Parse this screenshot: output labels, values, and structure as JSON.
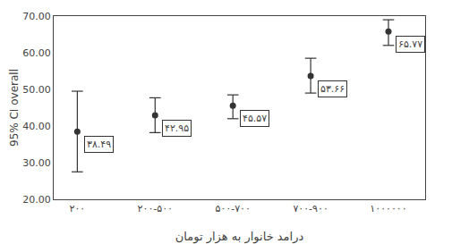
{
  "chart_data": {
    "type": "errorbar",
    "xlabel": "درامد خانوار به هزار تومان",
    "ylabel": "95% CI overall",
    "categories": [
      "۲۰۰",
      "۲۰۰-۵۰۰",
      "۵۰۰-۷۰۰",
      "۷۰۰-۹۰۰",
      "۱۰۰۰۰۰۰"
    ],
    "values": [
      38.49,
      42.95,
      45.57,
      53.66,
      65.77
    ],
    "lower": [
      27.5,
      38.2,
      42.0,
      49.0,
      62.0
    ],
    "upper": [
      49.5,
      47.7,
      48.5,
      58.5,
      69.0
    ],
    "data_labels": true,
    "value_labels": [
      "۳۸.۴۹",
      "۴۲.۹۵",
      "۴۵.۵۷",
      "۵۳.۶۶",
      "۶۵.۷۷"
    ],
    "ylim": [
      20.0,
      70.0
    ],
    "yticks": [
      {
        "value": 20.0,
        "label": "20.00"
      },
      {
        "value": 30.0,
        "label": "30.00"
      },
      {
        "value": 40.0,
        "label": "40.00"
      },
      {
        "value": 50.0,
        "label": "50.00"
      },
      {
        "value": 60.0,
        "label": "60.00"
      },
      {
        "value": 70.0,
        "label": "70.00"
      }
    ],
    "color": "#333333",
    "marker": "circle",
    "grid": false
  }
}
